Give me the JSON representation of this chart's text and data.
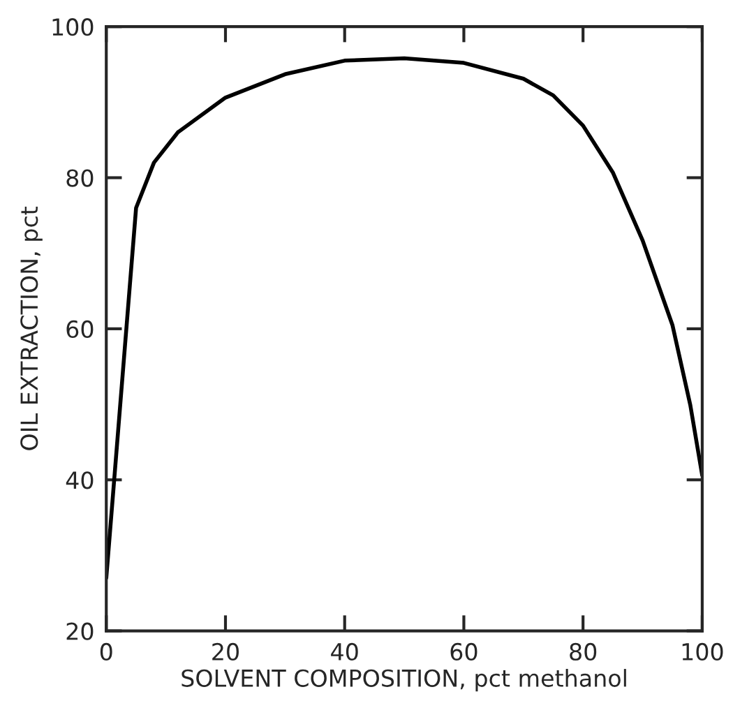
{
  "chart_data": {
    "type": "line",
    "xlabel": "SOLVENT COMPOSITION, pct methanol",
    "ylabel": "OIL EXTRACTION, pct",
    "x": [
      0,
      5,
      8,
      12,
      20,
      30,
      40,
      50,
      60,
      70,
      75,
      80,
      85,
      90,
      95,
      98,
      100
    ],
    "series": [
      {
        "color": "#000000",
        "values": [
          27,
          76,
          82,
          86,
          90.6,
          93.7,
          95.5,
          95.8,
          95.2,
          93.1,
          90.9,
          86.9,
          80.7,
          71.7,
          60.5,
          49.9,
          40.6
        ]
      }
    ],
    "xlim": [
      0,
      100
    ],
    "ylim": [
      20,
      100
    ],
    "xticks": [
      0,
      20,
      40,
      60,
      80,
      100
    ],
    "yticks": [
      20,
      40,
      60,
      80,
      100
    ],
    "grid": false,
    "marker": "none",
    "line_style": "solid"
  }
}
